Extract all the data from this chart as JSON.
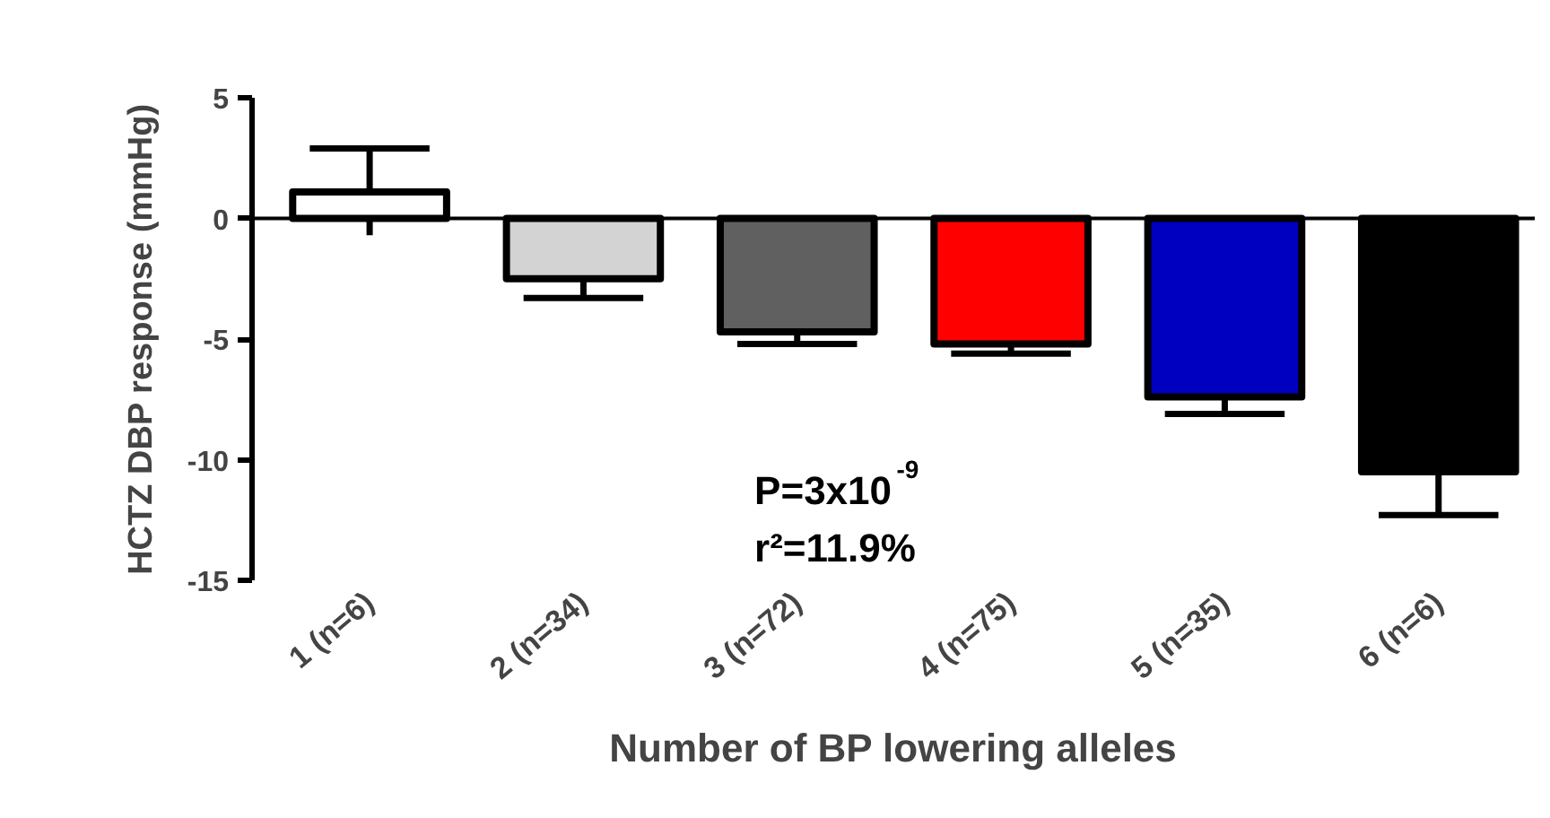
{
  "chart_data": {
    "type": "bar",
    "xlabel": "Number of BP lowering alleles",
    "ylabel": "HCTZ DBP response (mmHg)",
    "categories": [
      "1 (n=6)",
      "2 (n=34)",
      "3 (n=72)",
      "4 (n=75)",
      "5 (n=35)",
      "6 (n=6)"
    ],
    "values": [
      1.1,
      -2.5,
      -4.7,
      -5.2,
      -7.4,
      -10.5
    ],
    "errors": [
      [
        -0.7,
        2.9
      ],
      [
        -3.3,
        -2.5
      ],
      [
        -5.2,
        -4.7
      ],
      [
        -5.6,
        -5.2
      ],
      [
        -8.1,
        -7.4
      ],
      [
        -12.3,
        -10.5
      ]
    ],
    "colors": [
      "#ffffff",
      "#d3d3d3",
      "#606060",
      "#ff0000",
      "#0000c0",
      "#000000"
    ],
    "ylim": [
      -15,
      5
    ],
    "yticks": [
      -15,
      -10,
      -5,
      0,
      5
    ],
    "annotations": [
      "P=3x10$^{-9}$",
      "r²=11.9%"
    ],
    "ref_lines": [
      {
        "axis": "y",
        "value": 0
      }
    ],
    "grid": false
  }
}
